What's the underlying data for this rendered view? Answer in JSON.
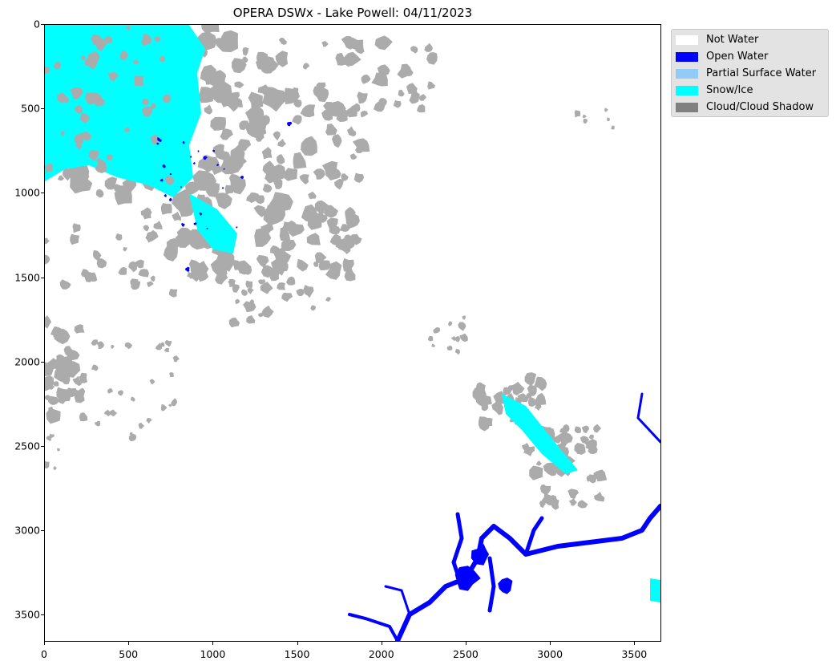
{
  "title": "OPERA DSWx - Lake Powell: 04/11/2023",
  "chart_data": {
    "type": "heatmap",
    "title": "OPERA DSWx - Lake Powell: 04/11/2023",
    "xlabel": "",
    "ylabel": "",
    "xlim": [
      0,
      3660
    ],
    "ylim": [
      3660,
      0
    ],
    "x_ticks": [
      0,
      500,
      1000,
      1500,
      2000,
      2500,
      3000,
      3500
    ],
    "y_ticks": [
      0,
      500,
      1000,
      1500,
      2000,
      2500,
      3000,
      3500
    ],
    "grid": false,
    "legend_position": "outside-top-right",
    "classes": [
      {
        "label": "Not Water",
        "color": "#ffffff"
      },
      {
        "label": "Open Water",
        "color": "#0000ff"
      },
      {
        "label": "Partial Surface Water",
        "color": "#92cbf5"
      },
      {
        "label": "Snow/Ice",
        "color": "#00ffff"
      },
      {
        "label": "Cloud/Cloud Shadow",
        "color": "#808080"
      }
    ],
    "cloud_render_color": "#ababab"
  }
}
